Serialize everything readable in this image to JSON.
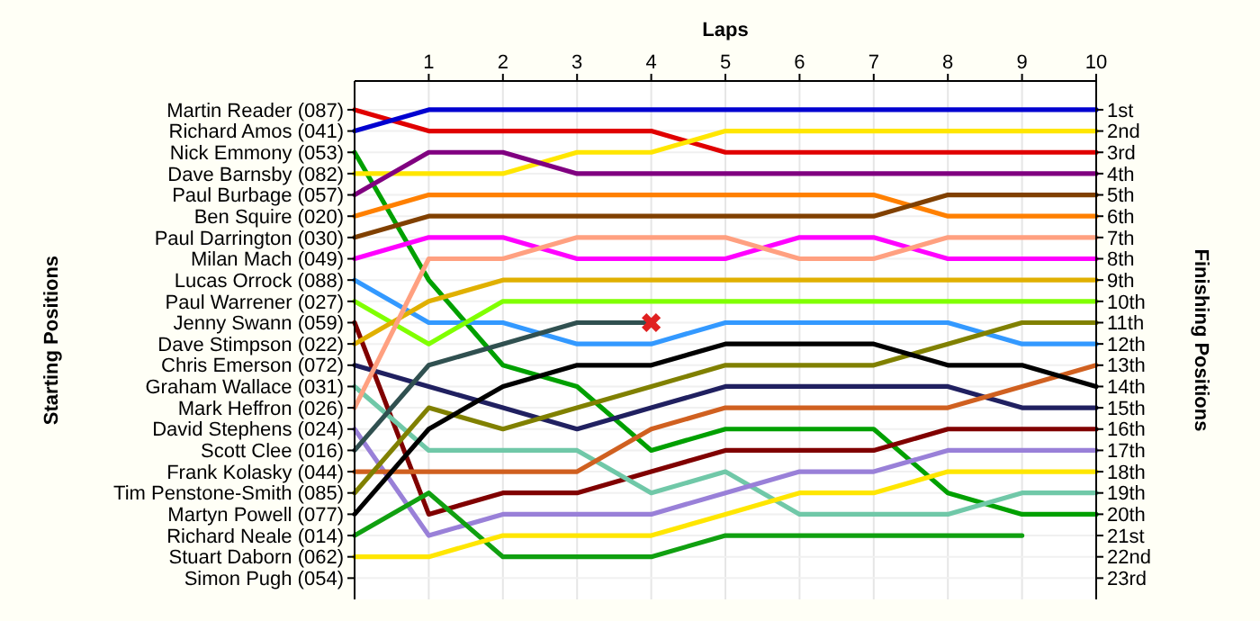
{
  "chart_data": {
    "type": "line",
    "xlabel": "Laps",
    "y2label": "Finishing Positions",
    "x": [
      0,
      1,
      2,
      3,
      4,
      5,
      6,
      7,
      8,
      9,
      10
    ],
    "xlim": [
      0,
      10
    ],
    "xticks": [
      1,
      2,
      3,
      4,
      5,
      6,
      7,
      8,
      9,
      10
    ],
    "annotations": [
      "Martin Reader (087)",
      "Richard Amos (041)",
      "Nick Emmony (053)",
      "Dave Barnsby (082)",
      "Paul Burbage (057)",
      "Ben Squire (020)",
      "Paul Darrington (030)",
      "Milan Mach (049)",
      "Lucas Orrock (088)",
      "Paul Warrener (027)",
      "Jenny Swann (059)",
      "Dave Stimpson (022)",
      "Chris Emerson (072)",
      "Graham Wallace (031)",
      "Mark Heffron (026)",
      "David Stephens (024)",
      "Scott Clee (016)",
      "Frank Kolasky (044)",
      "Tim Penstone-Smith (085)",
      "Martyn Powell (077)",
      "Richard Neale (014)",
      "Stuart Daborn (062)",
      "Simon Pugh (054)",
      "Starting Positions"
    ],
    "y2lim": [
      24,
      -0.35
    ],
    "y2ticks": [
      {
        "value": 1,
        "label": "1st"
      },
      {
        "value": 2,
        "label": "2nd"
      },
      {
        "value": 3,
        "label": "3rd"
      },
      {
        "value": 4,
        "label": "4th"
      },
      {
        "value": 5,
        "label": "5th"
      },
      {
        "value": 6,
        "label": "6th"
      },
      {
        "value": 7,
        "label": "7th"
      },
      {
        "value": 8,
        "label": "8th"
      },
      {
        "value": 9,
        "label": "9th"
      },
      {
        "value": 10,
        "label": "10th"
      },
      {
        "value": 11,
        "label": "11th"
      },
      {
        "value": 12,
        "label": "12th"
      },
      {
        "value": 13,
        "label": "13th"
      },
      {
        "value": 14,
        "label": "14th"
      },
      {
        "value": 15,
        "label": "15th"
      },
      {
        "value": 16,
        "label": "16th"
      },
      {
        "value": 17,
        "label": "17th"
      },
      {
        "value": 18,
        "label": "18th"
      },
      {
        "value": 19,
        "label": "19th"
      },
      {
        "value": 20,
        "label": "20th"
      },
      {
        "value": 21,
        "label": "21st"
      },
      {
        "value": 22,
        "label": "22nd"
      },
      {
        "value": 23,
        "label": "23rd"
      }
    ],
    "grid": true,
    "series": [
      {
        "axis": "y2",
        "color": "#e00000",
        "values": [
          1,
          2,
          2,
          2,
          2,
          3,
          3,
          3,
          3,
          3,
          3
        ]
      },
      {
        "axis": "y2",
        "color": "#0000d0",
        "values": [
          2,
          1,
          1,
          1,
          1,
          1,
          1,
          1,
          1,
          1,
          1
        ]
      },
      {
        "axis": "y2",
        "color": "#00a000",
        "values": [
          3,
          9,
          13,
          14,
          17,
          16,
          16,
          16,
          19,
          20,
          20
        ]
      },
      {
        "axis": "y2",
        "color": "#ffe600",
        "values": [
          4,
          4,
          4,
          3,
          3,
          2,
          2,
          2,
          2,
          2,
          2
        ]
      },
      {
        "axis": "y2",
        "color": "#800080",
        "values": [
          5,
          3,
          3,
          4,
          4,
          4,
          4,
          4,
          4,
          4,
          4
        ]
      },
      {
        "axis": "y2",
        "color": "#ff8000",
        "values": [
          6,
          5,
          5,
          5,
          5,
          5,
          5,
          5,
          6,
          6,
          6
        ]
      },
      {
        "axis": "y2",
        "color": "#804000",
        "values": [
          7,
          6,
          6,
          6,
          6,
          6,
          6,
          6,
          5,
          5,
          5
        ]
      },
      {
        "axis": "y2",
        "color": "#ff00ff",
        "values": [
          8,
          7,
          7,
          8,
          8,
          8,
          7,
          7,
          8,
          8,
          8
        ]
      },
      {
        "axis": "y2",
        "color": "#3399ff",
        "values": [
          9,
          11,
          11,
          12,
          12,
          11,
          11,
          11,
          11,
          12,
          12
        ]
      },
      {
        "axis": "y2",
        "color": "#80ff00",
        "values": [
          10,
          12,
          10,
          10,
          10,
          10,
          10,
          10,
          10,
          10,
          10
        ]
      },
      {
        "axis": "y2",
        "color": "#800000",
        "values": [
          11,
          20,
          19,
          19,
          18,
          17,
          17,
          17,
          16,
          16,
          16
        ]
      },
      {
        "axis": "y2",
        "color": "#e0b000",
        "values": [
          12,
          10,
          9,
          9,
          9,
          9,
          9,
          9,
          9,
          9,
          9
        ]
      },
      {
        "axis": "y2",
        "color": "#202060",
        "values": [
          13,
          14,
          15,
          16,
          15,
          14,
          14,
          14,
          14,
          15,
          15
        ]
      },
      {
        "axis": "y2",
        "color": "#70c8a8",
        "values": [
          14,
          17,
          17,
          17,
          19,
          18,
          20,
          20,
          20,
          19,
          19
        ]
      },
      {
        "axis": "y2",
        "color": "#ffa080",
        "values": [
          15,
          8,
          8,
          7,
          7,
          7,
          8,
          8,
          7,
          7,
          7
        ]
      },
      {
        "axis": "y2",
        "color": "#9980d8",
        "values": [
          16,
          21,
          20,
          20,
          20,
          19,
          18,
          18,
          17,
          17,
          17
        ]
      },
      {
        "axis": "y2",
        "color": "#305050",
        "values": [
          17,
          13,
          12,
          11,
          11,
          null,
          null,
          null,
          null,
          null,
          null
        ]
      },
      {
        "axis": "y2",
        "color": "#d06020",
        "values": [
          18,
          18,
          18,
          18,
          16,
          15,
          15,
          15,
          15,
          14,
          13
        ]
      },
      {
        "axis": "y2",
        "color": "#808000",
        "values": [
          19,
          15,
          16,
          15,
          14,
          13,
          13,
          13,
          12,
          11,
          11
        ]
      },
      {
        "axis": "y2",
        "color": "#000000",
        "values": [
          20,
          16,
          14,
          13,
          13,
          12,
          12,
          12,
          13,
          13,
          14
        ]
      },
      {
        "axis": "y2",
        "color": "#10a010",
        "values": [
          21,
          19,
          22,
          22,
          22,
          21,
          21,
          21,
          21,
          21,
          null
        ]
      },
      {
        "axis": "y2",
        "color": "#ffe600",
        "values": [
          22,
          22,
          21,
          21,
          21,
          20,
          19,
          19,
          18,
          18,
          18
        ]
      },
      {
        "axis": "y2",
        "type": "scatter",
        "marker": "cross",
        "color": "#e02020",
        "x": [
          4
        ],
        "values": [
          11
        ]
      }
    ]
  }
}
